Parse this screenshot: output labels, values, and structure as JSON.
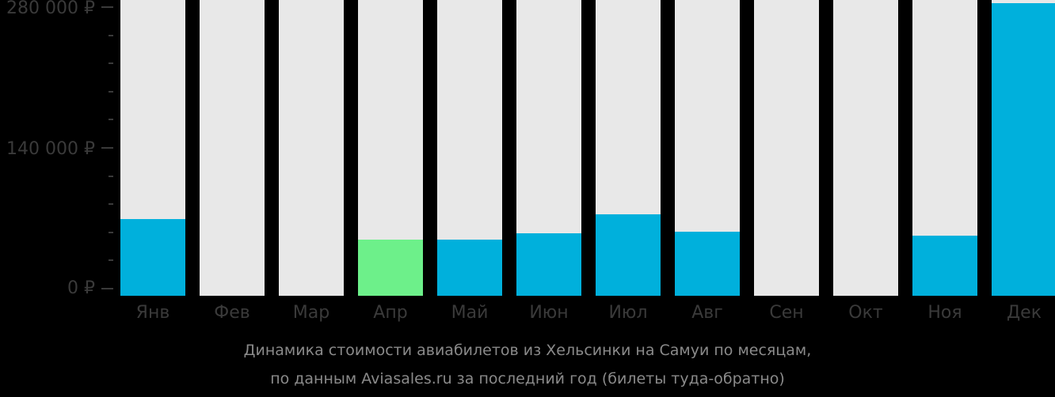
{
  "chart_data": {
    "type": "bar",
    "title": "Динамика стоимости авиабилетов из Хельсинки на Самуи по месяцам, по данным Aviasales.ru за последний год (билеты туда-обратно)",
    "xlabel": "",
    "ylabel": "",
    "ylim": [
      0,
      280000
    ],
    "y_ticks": [
      "0 ₽",
      "140 000 ₽",
      "280 000 ₽"
    ],
    "categories": [
      "Янв",
      "Фев",
      "Мар",
      "Апр",
      "Май",
      "Июн",
      "Июл",
      "Авг",
      "Сен",
      "Окт",
      "Ноя",
      "Дек"
    ],
    "values": [
      69000,
      null,
      null,
      49000,
      49000,
      55000,
      74000,
      56500,
      null,
      null,
      52500,
      284000
    ],
    "highlight_index": 3,
    "colors": {
      "bar": "#00b0dc",
      "highlight": "#6df08a",
      "background_bar": "#e8e8e8"
    },
    "grid": false,
    "legend": "none"
  },
  "axis": {
    "labels": [
      "280 000 ₽",
      "140 000 ₽",
      "0 ₽"
    ]
  },
  "caption": {
    "line1": "Динамика стоимости авиабилетов из Хельсинки на Самуи по месяцам,",
    "line2": "по данным Aviasales.ru за последний год (билеты туда-обратно)"
  }
}
